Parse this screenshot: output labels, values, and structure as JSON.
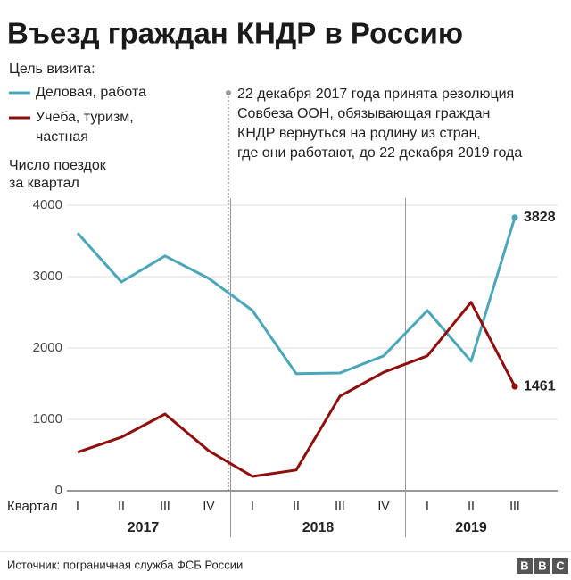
{
  "chart_data": {
    "type": "line",
    "title": "Въезд граждан КНДР в Россию",
    "legend_title": "Цель визита:",
    "y_label": [
      "Число поездок",
      "за квартал"
    ],
    "x_label": "Квартал",
    "categories": [
      "I",
      "II",
      "III",
      "IV",
      "I",
      "II",
      "III",
      "IV",
      "I",
      "II",
      "III"
    ],
    "years": [
      "2017",
      "2018",
      "2019"
    ],
    "series": [
      {
        "name": "Деловая, работа",
        "color": "#4ba6b8",
        "values": [
          3610,
          2925,
          3290,
          2975,
          2525,
          1640,
          1650,
          1890,
          2525,
          1815,
          3828
        ]
      },
      {
        "name": "Учеба, туризм, частная",
        "color": "#8e0f0e",
        "values": [
          540,
          750,
          1075,
          560,
          200,
          290,
          1325,
          1660,
          1890,
          2640,
          1461
        ]
      }
    ],
    "ylim": [
      0,
      4000
    ],
    "yticks": [
      0,
      1000,
      2000,
      3000,
      4000
    ],
    "grid": true,
    "annotation": [
      "22 декабря 2017 года принята резолюция",
      "Совбеза ООН, обязывающая граждан",
      "КНДР вернуться на родину из стран,",
      "где они работают, до 22 декабря 2019 года"
    ],
    "source": "Источник: пограничная служба ФСБ России",
    "logo": "BBC"
  }
}
